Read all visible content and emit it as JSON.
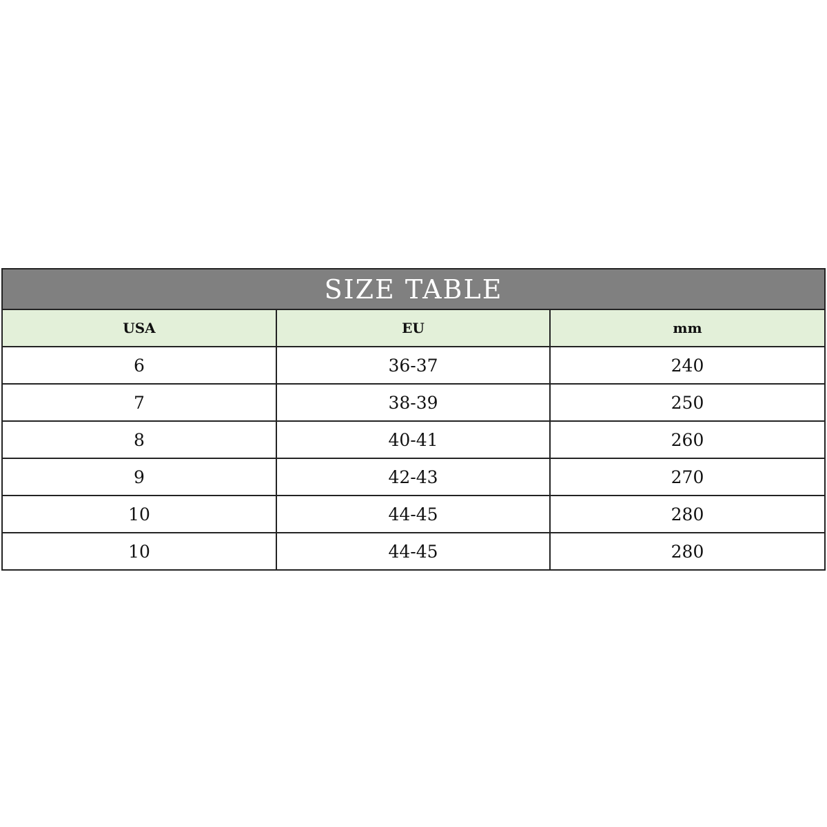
{
  "title": "SIZE TABLE",
  "headers": [
    "USA",
    "EU",
    "mm"
  ],
  "rows": [
    [
      "6",
      "36-37",
      "240"
    ],
    [
      "7",
      "38-39",
      "250"
    ],
    [
      "8",
      "40-41",
      "260"
    ],
    [
      "9",
      "42-43",
      "270"
    ],
    [
      "10",
      "44-45",
      "280"
    ],
    [
      "10",
      "44-45",
      "280"
    ]
  ],
  "colors": {
    "title_bg": "#808080",
    "header_bg": "#e3f0d9",
    "border": "#222222"
  }
}
